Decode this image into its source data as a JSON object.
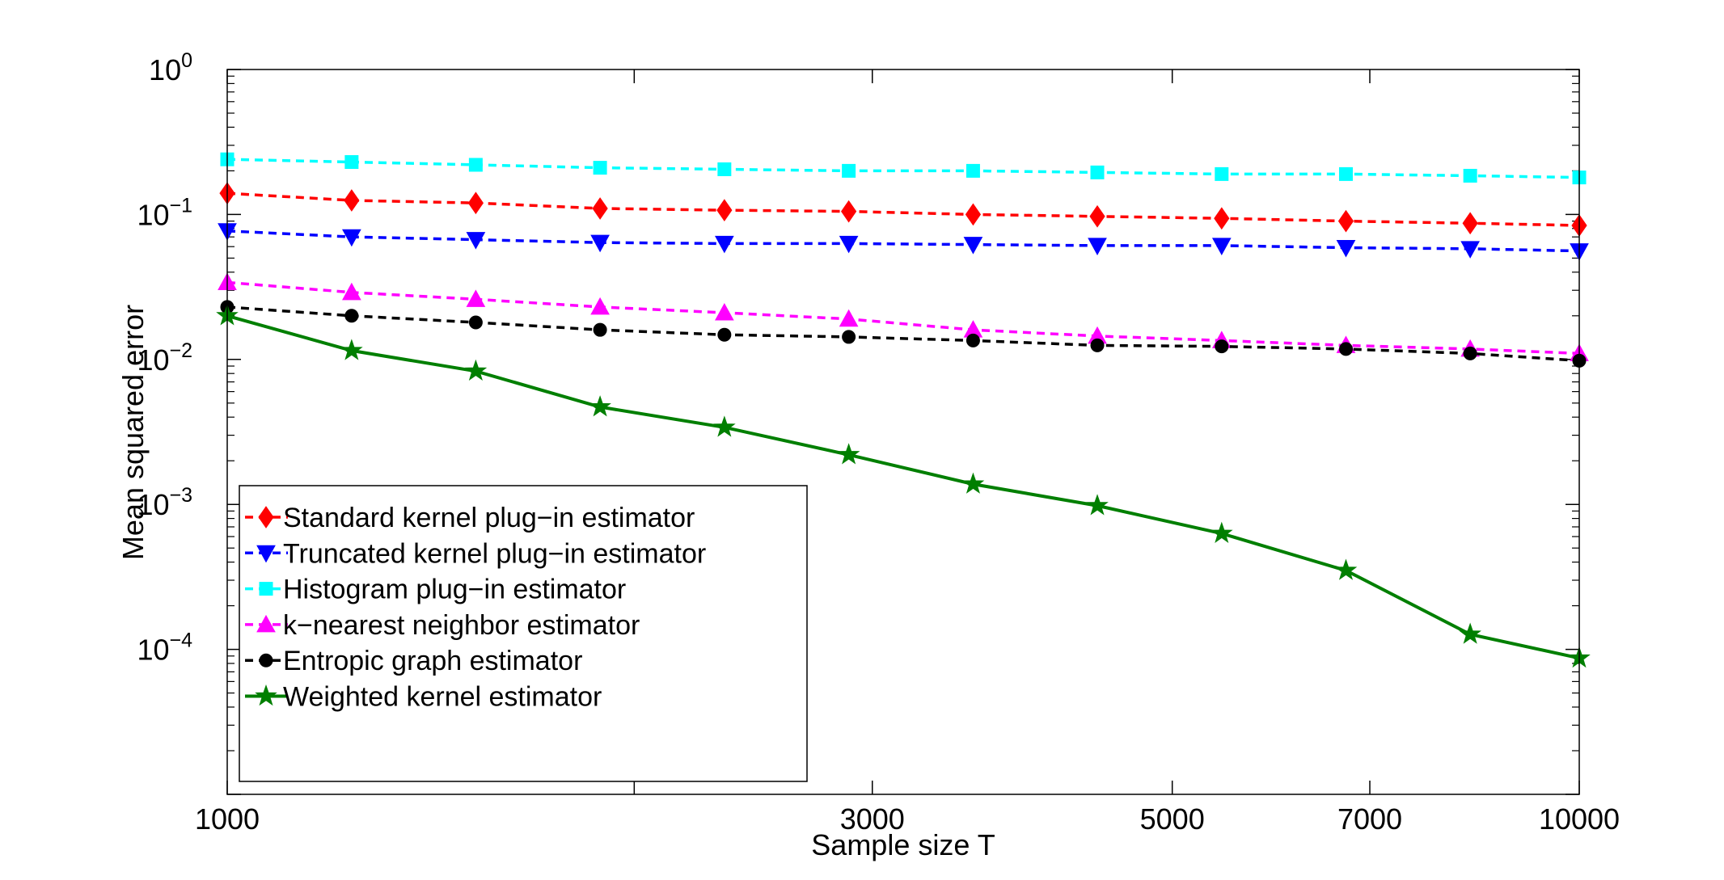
{
  "chart_data": {
    "type": "line",
    "xscale": "log",
    "yscale": "log",
    "xlabel": "Sample size T",
    "ylabel": "Mean squared error",
    "xlim": [
      1000,
      10000
    ],
    "ylim": [
      1e-05,
      1
    ],
    "x_tick_labels": [
      "1000",
      "3000",
      "5000",
      "7000",
      "10000"
    ],
    "x_ticks": [
      1000,
      3000,
      5000,
      7000,
      10000
    ],
    "x_minor_ticks": [
      2000
    ],
    "y_ticks": [
      {
        "value": 1,
        "base": "10",
        "exp": "0"
      },
      {
        "value": 0.1,
        "base": "10",
        "exp": "−1"
      },
      {
        "value": 0.01,
        "base": "10",
        "exp": "−2"
      },
      {
        "value": 0.001,
        "base": "10",
        "exp": "−3"
      },
      {
        "value": 0.0001,
        "base": "10",
        "exp": "−4"
      }
    ],
    "legend_position": "bottom-left",
    "x": [
      1000,
      1236,
      1527,
      1887,
      2332,
      2882,
      3562,
      4401,
      5439,
      6721,
      8305,
      10000
    ],
    "series": [
      {
        "name": "Standard kernel plug−in estimator",
        "color": "#ff0000",
        "linestyle": "dashed",
        "marker": "diamond",
        "values": [
          0.14,
          0.125,
          0.12,
          0.11,
          0.107,
          0.105,
          0.1,
          0.097,
          0.094,
          0.09,
          0.087,
          0.084
        ]
      },
      {
        "name": "Truncated kernel plug−in estimator",
        "color": "#0000ff",
        "linestyle": "dashed",
        "marker": "triangle-down",
        "values": [
          0.077,
          0.07,
          0.067,
          0.064,
          0.063,
          0.063,
          0.062,
          0.061,
          0.061,
          0.059,
          0.058,
          0.056
        ]
      },
      {
        "name": "Histogram plug−in estimator",
        "color": "#00ffff",
        "linestyle": "dashed",
        "marker": "square",
        "values": [
          0.24,
          0.23,
          0.22,
          0.21,
          0.205,
          0.2,
          0.2,
          0.195,
          0.19,
          0.19,
          0.185,
          0.18
        ]
      },
      {
        "name": "k−nearest neighbor estimator",
        "color": "#ff00ff",
        "linestyle": "dashed",
        "marker": "triangle-up",
        "values": [
          0.034,
          0.029,
          0.026,
          0.023,
          0.021,
          0.019,
          0.016,
          0.0145,
          0.0135,
          0.0125,
          0.0118,
          0.011
        ]
      },
      {
        "name": "Entropic graph estimator",
        "color": "#000000",
        "linestyle": "dashed",
        "marker": "circle",
        "values": [
          0.023,
          0.02,
          0.018,
          0.016,
          0.0148,
          0.0143,
          0.0135,
          0.0125,
          0.0123,
          0.0118,
          0.011,
          0.0098
        ]
      },
      {
        "name": "Weighted kernel estimator",
        "color": "#007f00",
        "linestyle": "solid",
        "marker": "star",
        "values": [
          0.02,
          0.0115,
          0.0083,
          0.0047,
          0.0034,
          0.0022,
          0.00138,
          0.00098,
          0.00063,
          0.00035,
          0.000127,
          8.7e-05
        ]
      }
    ]
  }
}
